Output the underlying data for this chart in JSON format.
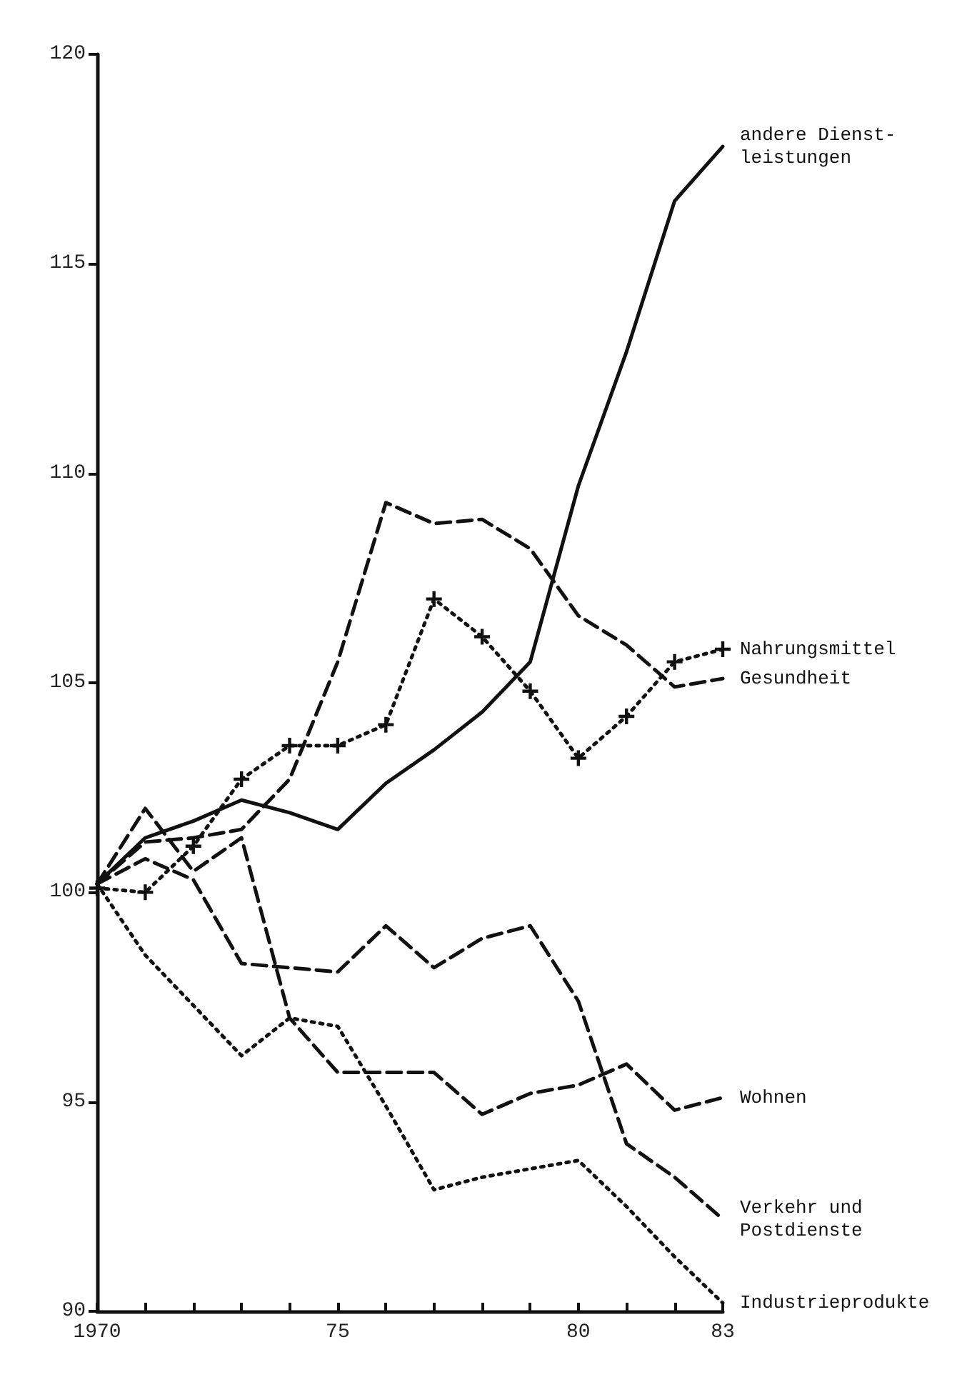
{
  "chart_data": {
    "type": "line",
    "x": [
      1970,
      1971,
      1972,
      1973,
      1974,
      1975,
      1976,
      1977,
      1978,
      1979,
      1980,
      1981,
      1982,
      1983
    ],
    "series": [
      {
        "name": "andere Dienst-\nleistungen",
        "color": "#111111",
        "line_style": "solid",
        "marker": "none",
        "values": [
          100.2,
          101.3,
          101.7,
          102.2,
          101.9,
          101.5,
          102.6,
          103.4,
          104.3,
          105.5,
          109.7,
          112.9,
          116.5,
          117.8
        ]
      },
      {
        "name": "Nahrungsmittel",
        "color": "#111111",
        "line_style": "dotted",
        "marker": "cross",
        "values": [
          100.1,
          100.0,
          101.1,
          102.7,
          103.5,
          103.5,
          104.0,
          107.0,
          106.1,
          104.8,
          103.2,
          104.2,
          105.5,
          105.8
        ]
      },
      {
        "name": "Gesundheit",
        "color": "#111111",
        "line_style": "dashed",
        "marker": "none",
        "values": [
          100.2,
          101.2,
          101.3,
          101.5,
          102.7,
          105.5,
          109.3,
          108.8,
          108.9,
          108.2,
          106.6,
          105.9,
          104.9,
          105.1
        ]
      },
      {
        "name": "Wohnen",
        "color": "#111111",
        "line_style": "dashed",
        "marker": "none",
        "values": [
          100.2,
          102.0,
          100.5,
          101.3,
          97.0,
          95.7,
          95.7,
          95.7,
          94.7,
          95.2,
          95.4,
          95.9,
          94.8,
          95.1
        ]
      },
      {
        "name": "Verkehr und\nPostdienste",
        "color": "#111111",
        "line_style": "dashed",
        "marker": "none",
        "values": [
          100.2,
          100.8,
          100.3,
          98.3,
          98.2,
          98.1,
          99.2,
          98.2,
          98.9,
          99.2,
          97.4,
          94.0,
          93.2,
          92.2
        ]
      },
      {
        "name": "Industrieprodukte",
        "color": "#111111",
        "line_style": "dotted",
        "marker": "none",
        "values": [
          100.2,
          98.5,
          97.3,
          96.1,
          97.0,
          96.8,
          94.9,
          92.9,
          93.2,
          93.4,
          93.6,
          92.5,
          91.3,
          90.2
        ]
      }
    ],
    "xlim": [
      1970,
      1983
    ],
    "xticks": [
      1970,
      {
        "value": 1971,
        "label": null
      },
      {
        "value": 1972,
        "label": null
      },
      {
        "value": 1973,
        "label": null
      },
      {
        "value": 1974,
        "label": null
      },
      {
        "value": 1975,
        "label": "75"
      },
      {
        "value": 1976,
        "label": null
      },
      {
        "value": 1977,
        "label": null
      },
      {
        "value": 1978,
        "label": null
      },
      {
        "value": 1979,
        "label": null
      },
      {
        "value": 1980,
        "label": "80"
      },
      {
        "value": 1981,
        "label": null
      },
      {
        "value": 1982,
        "label": null
      },
      {
        "value": 1983,
        "label": "83"
      }
    ],
    "ylim": [
      90,
      120
    ],
    "yticks": [
      90,
      95,
      100,
      105,
      110,
      115,
      120
    ],
    "grid": false,
    "legend": false
  }
}
